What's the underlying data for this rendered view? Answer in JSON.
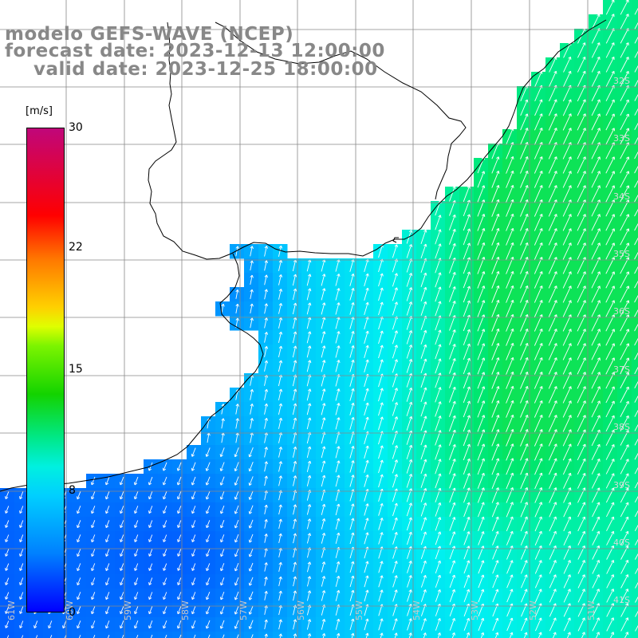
{
  "title": {
    "line1": "modelo GEFS-WAVE (NCEP)",
    "line2": "forecast date: 2023-12-13 12:00:00",
    "line3": "valid date: 2023-12-25 18:00:00"
  },
  "colorbar": {
    "unit": "[m/s]",
    "ticks": [
      "30",
      "22",
      "15",
      "8",
      "0"
    ],
    "tick_values": [
      30,
      22,
      15,
      8,
      0
    ],
    "range": [
      0,
      30
    ]
  },
  "grid": {
    "lat_labels": [
      "32S",
      "33S",
      "34S",
      "35S",
      "36S",
      "37S",
      "38S",
      "39S",
      "40S",
      "41S"
    ],
    "lon_labels": [
      "61W",
      "60W",
      "59W",
      "58W",
      "57W",
      "56W",
      "55W",
      "54W",
      "53W",
      "52W",
      "51W"
    ]
  },
  "colors": {
    "land": "#ffffff",
    "grid": "#888888",
    "coast": "#000000",
    "arrows": "#ffffff",
    "title": "#888888"
  }
}
